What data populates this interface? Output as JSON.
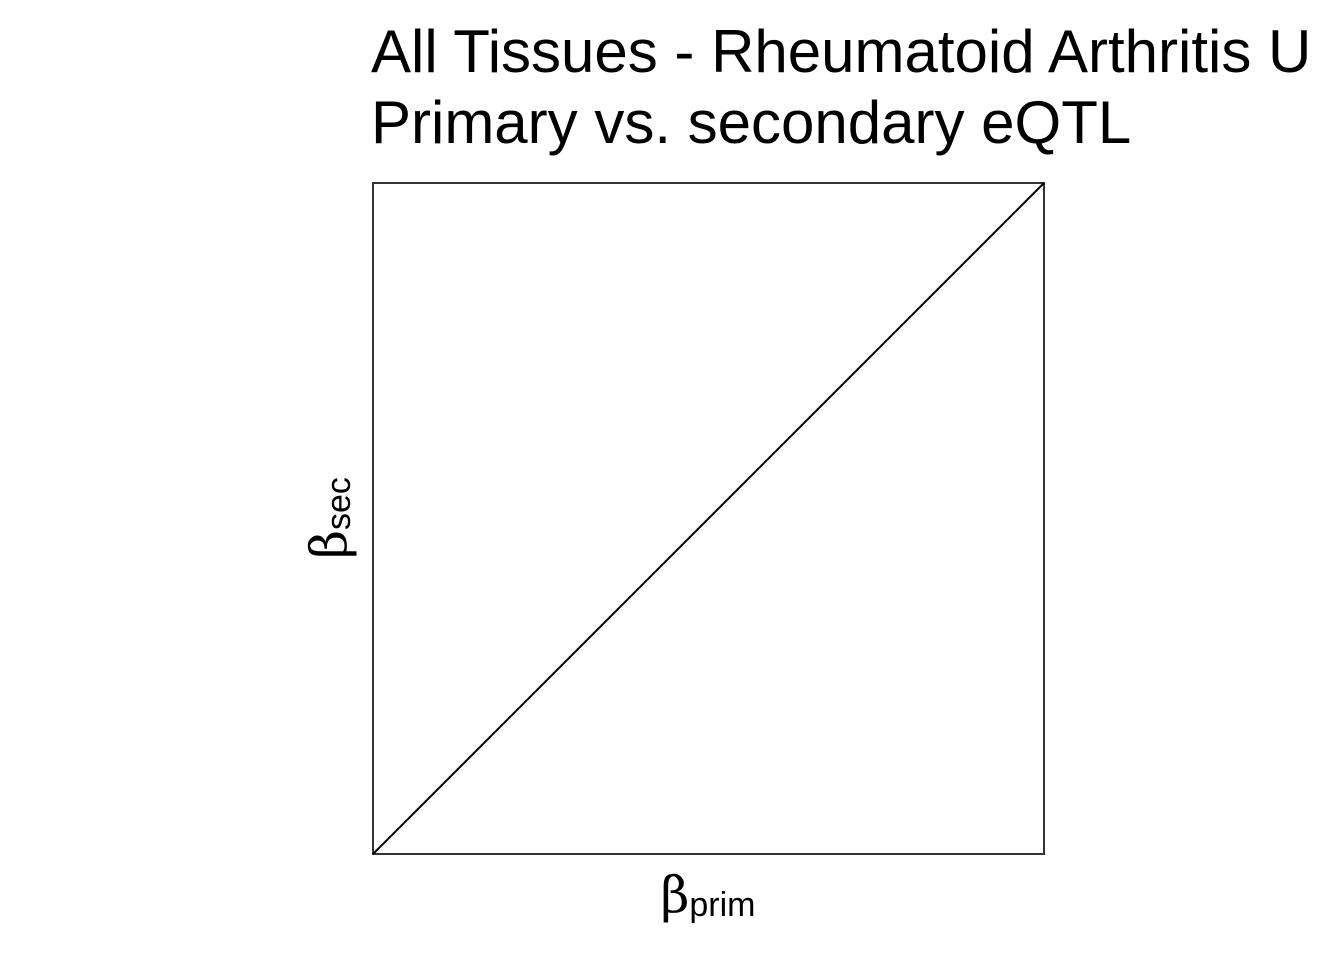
{
  "chart_data": {
    "type": "line",
    "title": "All Tissues - Rheumatoid Arthritis U",
    "subtitle": "Primary vs. secondary eQTL",
    "xlabel": {
      "symbol": "β",
      "subscript": "prim"
    },
    "ylabel": {
      "symbol": "β",
      "subscript": "sec"
    },
    "xlim": [
      0,
      1
    ],
    "ylim": [
      0,
      1
    ],
    "grid": false,
    "axis_ticks": false,
    "series": [
      {
        "kind": "reference-line",
        "x": [
          0,
          1
        ],
        "y": [
          0,
          1
        ],
        "color": "#000000"
      }
    ],
    "frame_color": "#333333",
    "background": "#ffffff"
  }
}
